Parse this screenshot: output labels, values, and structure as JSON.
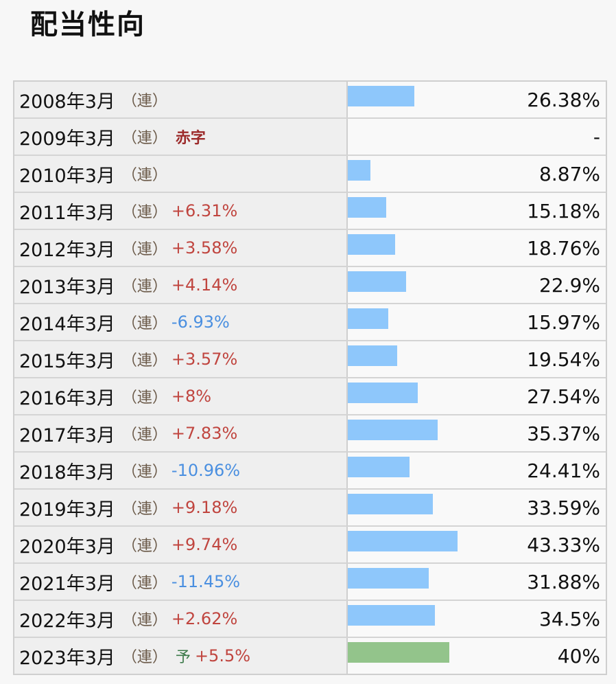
{
  "title": "配当性向",
  "scale_max_percent": 43.33,
  "colors": {
    "bar_actual": "#8ec7fb",
    "bar_forecast": "#93c48b",
    "change_up": "#c0453f",
    "change_down": "#4a8fe0",
    "deficit": "#9c2b2b",
    "forecast_mark": "#3c7a4a"
  },
  "rows": [
    {
      "year": "2008年3月",
      "cons": "（連）",
      "change": "",
      "direction": "",
      "note": "",
      "forecast": "",
      "value": "26.38%",
      "ratio": 26.38
    },
    {
      "year": "2009年3月",
      "cons": "（連）",
      "change": "",
      "direction": "",
      "note": "赤字",
      "forecast": "",
      "value": "-",
      "ratio": 0
    },
    {
      "year": "2010年3月",
      "cons": "（連）",
      "change": "",
      "direction": "",
      "note": "",
      "forecast": "",
      "value": "8.87%",
      "ratio": 8.87
    },
    {
      "year": "2011年3月",
      "cons": "（連）",
      "change": "+6.31%",
      "direction": "up",
      "note": "",
      "forecast": "",
      "value": "15.18%",
      "ratio": 15.18
    },
    {
      "year": "2012年3月",
      "cons": "（連）",
      "change": "+3.58%",
      "direction": "up",
      "note": "",
      "forecast": "",
      "value": "18.76%",
      "ratio": 18.76
    },
    {
      "year": "2013年3月",
      "cons": "（連）",
      "change": "+4.14%",
      "direction": "up",
      "note": "",
      "forecast": "",
      "value": "22.9%",
      "ratio": 22.9
    },
    {
      "year": "2014年3月",
      "cons": "（連）",
      "change": "-6.93%",
      "direction": "down",
      "note": "",
      "forecast": "",
      "value": "15.97%",
      "ratio": 15.97
    },
    {
      "year": "2015年3月",
      "cons": "（連）",
      "change": "+3.57%",
      "direction": "up",
      "note": "",
      "forecast": "",
      "value": "19.54%",
      "ratio": 19.54
    },
    {
      "year": "2016年3月",
      "cons": "（連）",
      "change": "+8%",
      "direction": "up",
      "note": "",
      "forecast": "",
      "value": "27.54%",
      "ratio": 27.54
    },
    {
      "year": "2017年3月",
      "cons": "（連）",
      "change": "+7.83%",
      "direction": "up",
      "note": "",
      "forecast": "",
      "value": "35.37%",
      "ratio": 35.37
    },
    {
      "year": "2018年3月",
      "cons": "（連）",
      "change": "-10.96%",
      "direction": "down",
      "note": "",
      "forecast": "",
      "value": "24.41%",
      "ratio": 24.41
    },
    {
      "year": "2019年3月",
      "cons": "（連）",
      "change": "+9.18%",
      "direction": "up",
      "note": "",
      "forecast": "",
      "value": "33.59%",
      "ratio": 33.59
    },
    {
      "year": "2020年3月",
      "cons": "（連）",
      "change": "+9.74%",
      "direction": "up",
      "note": "",
      "forecast": "",
      "value": "43.33%",
      "ratio": 43.33
    },
    {
      "year": "2021年3月",
      "cons": "（連）",
      "change": "-11.45%",
      "direction": "down",
      "note": "",
      "forecast": "",
      "value": "31.88%",
      "ratio": 31.88
    },
    {
      "year": "2022年3月",
      "cons": "（連）",
      "change": "+2.62%",
      "direction": "up",
      "note": "",
      "forecast": "",
      "value": "34.5%",
      "ratio": 34.5
    },
    {
      "year": "2023年3月",
      "cons": "（連）",
      "change": "+5.5%",
      "direction": "up",
      "note": "",
      "forecast": "予",
      "value": "40%",
      "ratio": 40
    }
  ]
}
